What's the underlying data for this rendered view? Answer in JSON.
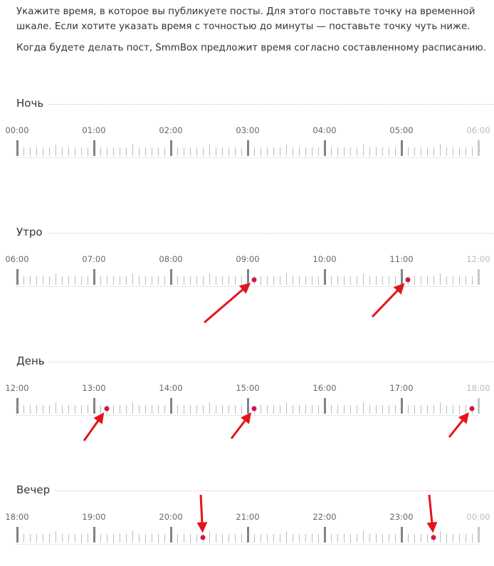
{
  "intro": {
    "line1": "Укажите время, в которое вы публикуете посты. Для этого поставьте точку на временной шкале. Если хотите указать время с точностью до минуты — поставьте точку чуть ниже.",
    "line2": "Когда будете делать пост, SmmBox предложит время согласно составленному расписанию."
  },
  "sections": [
    {
      "title": "Ночь",
      "hours": [
        "00:00",
        "01:00",
        "02:00",
        "03:00",
        "04:00",
        "05:00",
        "06:00"
      ],
      "marks": []
    },
    {
      "title": "Утро",
      "hours": [
        "06:00",
        "07:00",
        "08:00",
        "09:00",
        "10:00",
        "11:00",
        "12:00"
      ],
      "marks": [
        "09:05",
        "11:05"
      ]
    },
    {
      "title": "День",
      "hours": [
        "12:00",
        "13:00",
        "14:00",
        "15:00",
        "16:00",
        "17:00",
        "18:00"
      ],
      "marks": [
        "13:10",
        "15:05",
        "17:55"
      ]
    },
    {
      "title": "Вечер",
      "hours": [
        "18:00",
        "19:00",
        "20:00",
        "21:00",
        "22:00",
        "23:00",
        "00:00"
      ],
      "marks": [
        "20:25",
        "23:25"
      ]
    }
  ],
  "colors": {
    "mark": "#d8124f",
    "arrow": "#e3141c",
    "hour_tick": "#7a848b",
    "minute_tick": "#b8bdc1"
  }
}
